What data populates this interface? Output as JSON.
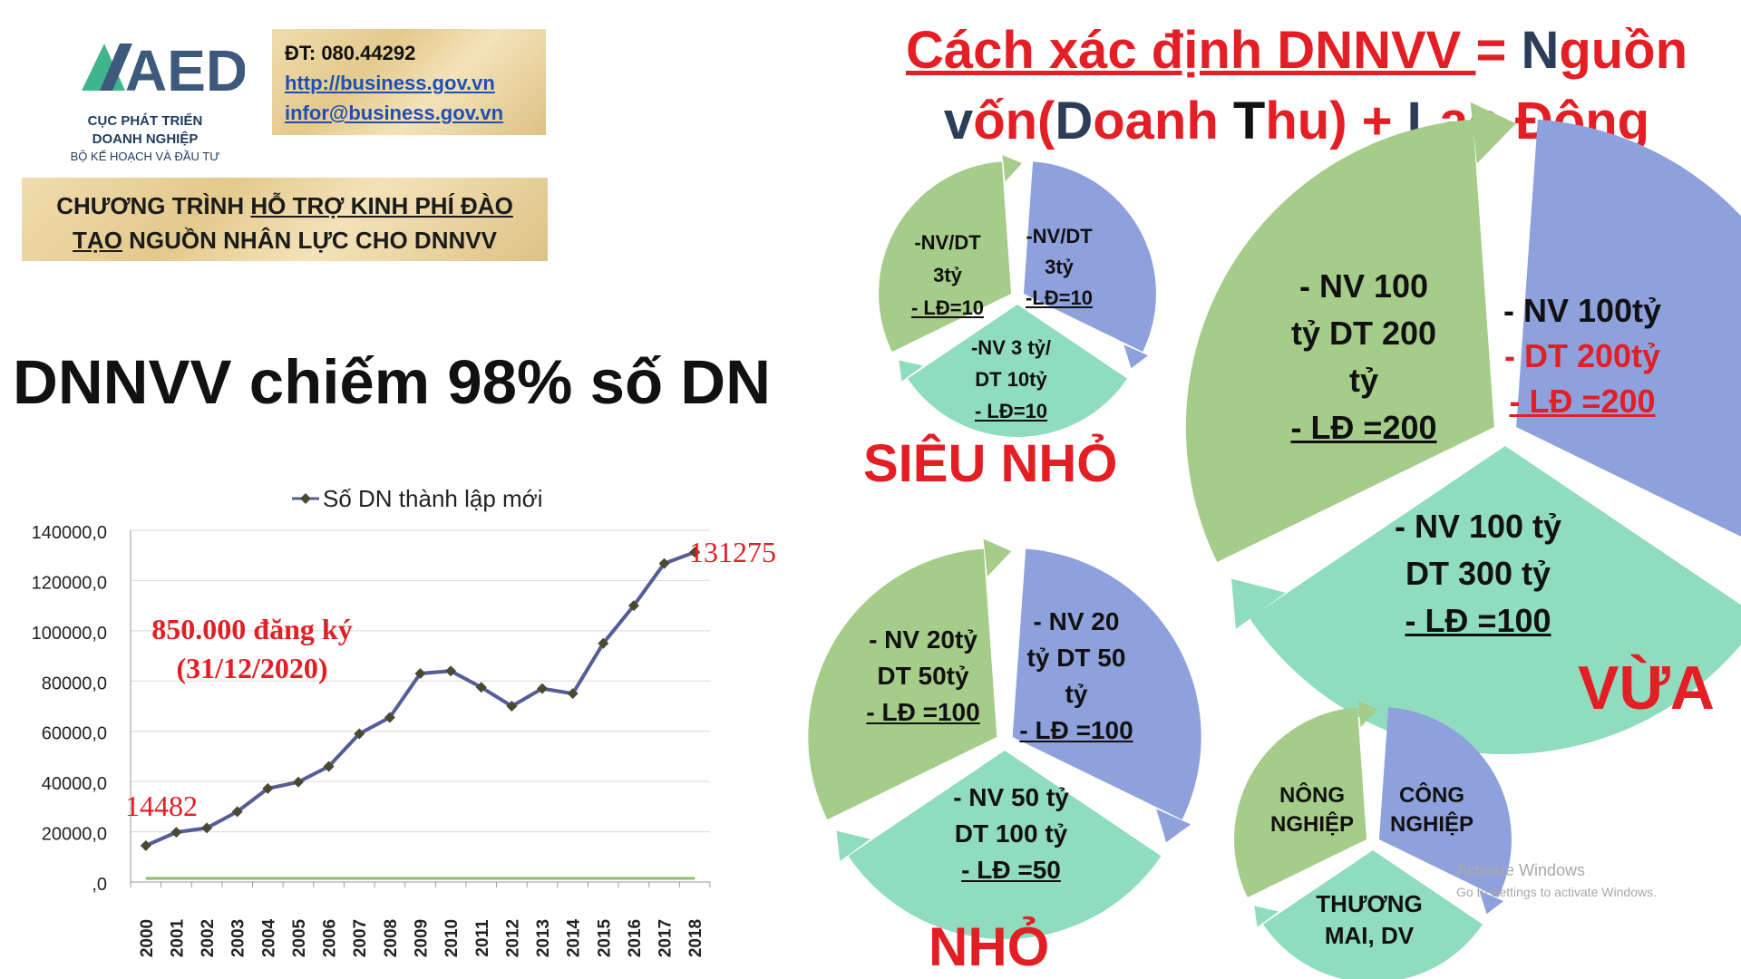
{
  "logo": {
    "letters": "AED",
    "name_line1": "CỤC PHÁT TRIỂN",
    "name_line2": "DOANH NGHIỆP",
    "ministry": "BỘ KẾ HOẠCH VÀ ĐẦU TƯ"
  },
  "contact": {
    "phone": "ĐT: 080.44292",
    "url": "http://business.gov.vn",
    "email": "infor@business.gov.vn"
  },
  "program": {
    "part1": "CHƯƠNG TRÌNH ",
    "part2_underlined": "HỖ TRỢ KINH PHÍ ĐÀO TẠO",
    "part3": " NGUỒN NHÂN LỰC CHO DNNVV"
  },
  "main_heading": "DNNVV chiếm 98% số DN",
  "title": {
    "underlined": "Cách xác định DNNVV ",
    "eq": "= ",
    "n1": "N",
    "n2": "guồn",
    "v1": "v",
    "v2": "ốn(",
    "d1": "D",
    "d2": "oanh ",
    "t1": "T",
    "t2": "hu) + ",
    "l1": "L",
    "l2": "ao Động"
  },
  "categories": {
    "sieu_nho": "SIÊU NHỎ",
    "nho": "NHỎ",
    "vua": "VỪA"
  },
  "pie_sieu_nho": {
    "left": [
      "-NV/DT",
      "3tỷ",
      "- LĐ=10"
    ],
    "right": [
      "-NV/DT",
      "3tỷ",
      "-LĐ=10"
    ],
    "bottom": [
      "-NV 3 tỷ/",
      "DT 10tỷ",
      "- LĐ=10"
    ]
  },
  "pie_nho": {
    "left": [
      "- NV 20tỷ",
      "DT 50tỷ",
      "- LĐ =100"
    ],
    "right": [
      "- NV 20",
      "tỷ DT 50",
      "tỷ",
      "- LĐ =100"
    ],
    "bottom": [
      "- NV 50 tỷ",
      "DT 100 tỷ",
      "- LĐ =50"
    ]
  },
  "pie_vua": {
    "left": [
      "- NV 100",
      "tỷ DT 200",
      "tỷ",
      "- LĐ =200"
    ],
    "right": [
      "- NV 100tỷ",
      "- DT 200tỷ",
      "- LĐ =200"
    ],
    "bottom": [
      "- NV 100 tỷ",
      "DT 300 tỷ",
      "- LĐ =100"
    ]
  },
  "pie_sectors": {
    "left": [
      "NÔNG",
      "NGHIỆP"
    ],
    "right": [
      "CÔNG",
      "NGHIỆP"
    ],
    "bottom": [
      "THƯƠNG",
      "MAI, DV"
    ]
  },
  "watermark": {
    "line1": "Activate Windows",
    "line2": "Go to Settings to activate Windows."
  },
  "colors": {
    "title_red": "#e31e24",
    "green": "#a6cc8a",
    "blue": "#8ea1dd",
    "teal": "#8fdcbf",
    "line": "#555d96"
  },
  "chart_data": {
    "type": "line",
    "legend": "Số DN thành lập mới",
    "x": [
      "2000",
      "2001",
      "2002",
      "2003",
      "2004",
      "2005",
      "2006",
      "2007",
      "2008",
      "2009",
      "2010",
      "2011",
      "2012",
      "2013",
      "2014",
      "2015",
      "2016",
      "2017",
      "2018"
    ],
    "series": [
      {
        "name": "Số DN thành lập mới",
        "values": [
          14482,
          19800,
          21500,
          28000,
          37200,
          39800,
          46000,
          59000,
          65500,
          83000,
          84000,
          77500,
          70000,
          77000,
          75000,
          95000,
          110000,
          126800,
          131275
        ]
      }
    ],
    "ylim": [
      0,
      140000
    ],
    "yticks": [
      "140000,0",
      "120000,0",
      "100000,0",
      "80000,0",
      "60000,0",
      "40000,0",
      "20000,0",
      ",0"
    ],
    "ytick_values": [
      140000,
      120000,
      100000,
      80000,
      60000,
      40000,
      20000,
      0
    ],
    "annotations": {
      "first": "14482",
      "last": "131275",
      "total": "850.000 đăng ký",
      "date": "(31/12/2020)"
    },
    "grid": true
  }
}
